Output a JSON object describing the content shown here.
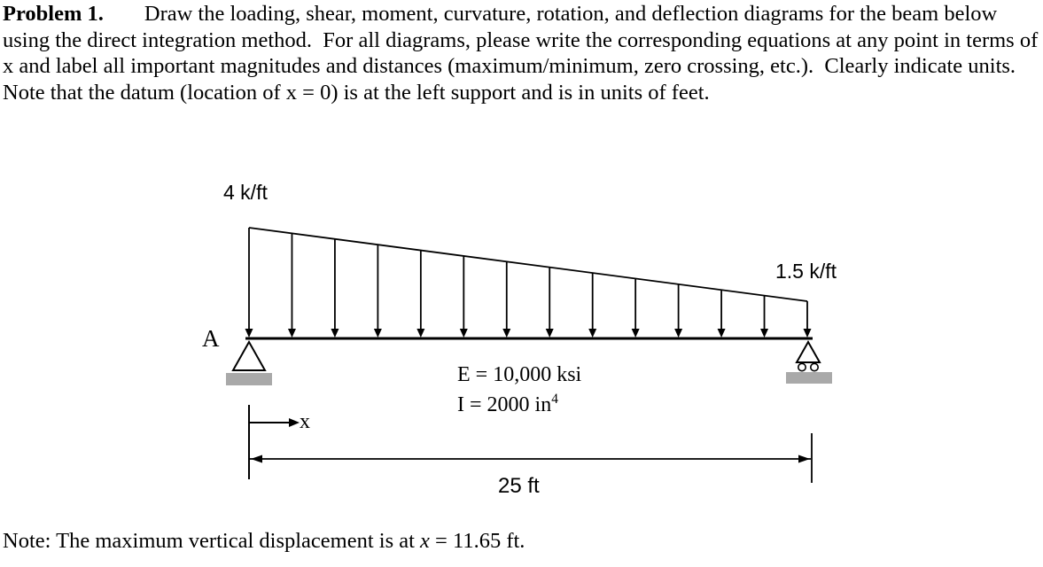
{
  "problem": {
    "label": "Problem 1.",
    "body": "Draw the loading, shear, moment, curvature, rotation, and deflection diagrams for the beam below using the direct integration method.  For all diagrams, please write the corresponding equations at any point in terms of x and label all important magnitudes and distances (maximum/minimum, zero crossing, etc.).  Clearly indicate units.  Note that the datum (location of x = 0) is at the left support and is in units of feet."
  },
  "diagram": {
    "load_left": "4 k/ft",
    "load_right": "1.5 k/ft",
    "support_label": "A",
    "elastic_modulus": "E = 10,000 ksi",
    "inertia_base": "I = 2000 in",
    "inertia_exponent": "4",
    "axis_label": "x",
    "span": "25 ft"
  },
  "note": {
    "prefix": "Note:  The maximum vertical displacement is at ",
    "variable": "x",
    "suffix": " = 11.65 ft."
  },
  "colors": {
    "ink": "#000000",
    "support_fill": "#a9a9a9"
  }
}
